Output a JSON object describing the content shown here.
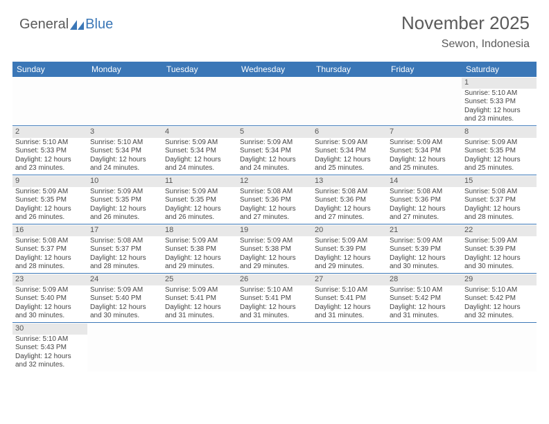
{
  "logo": {
    "part1": "General",
    "part2": "Blue"
  },
  "title": "November 2025",
  "subtitle": "Sewon, Indonesia",
  "colors": {
    "header_bg": "#3b77b7",
    "header_text": "#ffffff",
    "daynum_bg": "#e8e8e8",
    "cell_text": "#454545",
    "title_text": "#5a5a5a",
    "row_border": "#3b77b7"
  },
  "day_names": [
    "Sunday",
    "Monday",
    "Tuesday",
    "Wednesday",
    "Thursday",
    "Friday",
    "Saturday"
  ],
  "weeks": [
    [
      {
        "n": "",
        "empty": true
      },
      {
        "n": "",
        "empty": true
      },
      {
        "n": "",
        "empty": true
      },
      {
        "n": "",
        "empty": true
      },
      {
        "n": "",
        "empty": true
      },
      {
        "n": "",
        "empty": true
      },
      {
        "n": "1",
        "sr": "5:10 AM",
        "ss": "5:33 PM",
        "dl": "12 hours and 23 minutes."
      }
    ],
    [
      {
        "n": "2",
        "sr": "5:10 AM",
        "ss": "5:33 PM",
        "dl": "12 hours and 23 minutes."
      },
      {
        "n": "3",
        "sr": "5:10 AM",
        "ss": "5:34 PM",
        "dl": "12 hours and 24 minutes."
      },
      {
        "n": "4",
        "sr": "5:09 AM",
        "ss": "5:34 PM",
        "dl": "12 hours and 24 minutes."
      },
      {
        "n": "5",
        "sr": "5:09 AM",
        "ss": "5:34 PM",
        "dl": "12 hours and 24 minutes."
      },
      {
        "n": "6",
        "sr": "5:09 AM",
        "ss": "5:34 PM",
        "dl": "12 hours and 25 minutes."
      },
      {
        "n": "7",
        "sr": "5:09 AM",
        "ss": "5:34 PM",
        "dl": "12 hours and 25 minutes."
      },
      {
        "n": "8",
        "sr": "5:09 AM",
        "ss": "5:35 PM",
        "dl": "12 hours and 25 minutes."
      }
    ],
    [
      {
        "n": "9",
        "sr": "5:09 AM",
        "ss": "5:35 PM",
        "dl": "12 hours and 26 minutes."
      },
      {
        "n": "10",
        "sr": "5:09 AM",
        "ss": "5:35 PM",
        "dl": "12 hours and 26 minutes."
      },
      {
        "n": "11",
        "sr": "5:09 AM",
        "ss": "5:35 PM",
        "dl": "12 hours and 26 minutes."
      },
      {
        "n": "12",
        "sr": "5:08 AM",
        "ss": "5:36 PM",
        "dl": "12 hours and 27 minutes."
      },
      {
        "n": "13",
        "sr": "5:08 AM",
        "ss": "5:36 PM",
        "dl": "12 hours and 27 minutes."
      },
      {
        "n": "14",
        "sr": "5:08 AM",
        "ss": "5:36 PM",
        "dl": "12 hours and 27 minutes."
      },
      {
        "n": "15",
        "sr": "5:08 AM",
        "ss": "5:37 PM",
        "dl": "12 hours and 28 minutes."
      }
    ],
    [
      {
        "n": "16",
        "sr": "5:08 AM",
        "ss": "5:37 PM",
        "dl": "12 hours and 28 minutes."
      },
      {
        "n": "17",
        "sr": "5:08 AM",
        "ss": "5:37 PM",
        "dl": "12 hours and 28 minutes."
      },
      {
        "n": "18",
        "sr": "5:09 AM",
        "ss": "5:38 PM",
        "dl": "12 hours and 29 minutes."
      },
      {
        "n": "19",
        "sr": "5:09 AM",
        "ss": "5:38 PM",
        "dl": "12 hours and 29 minutes."
      },
      {
        "n": "20",
        "sr": "5:09 AM",
        "ss": "5:39 PM",
        "dl": "12 hours and 29 minutes."
      },
      {
        "n": "21",
        "sr": "5:09 AM",
        "ss": "5:39 PM",
        "dl": "12 hours and 30 minutes."
      },
      {
        "n": "22",
        "sr": "5:09 AM",
        "ss": "5:39 PM",
        "dl": "12 hours and 30 minutes."
      }
    ],
    [
      {
        "n": "23",
        "sr": "5:09 AM",
        "ss": "5:40 PM",
        "dl": "12 hours and 30 minutes."
      },
      {
        "n": "24",
        "sr": "5:09 AM",
        "ss": "5:40 PM",
        "dl": "12 hours and 30 minutes."
      },
      {
        "n": "25",
        "sr": "5:09 AM",
        "ss": "5:41 PM",
        "dl": "12 hours and 31 minutes."
      },
      {
        "n": "26",
        "sr": "5:10 AM",
        "ss": "5:41 PM",
        "dl": "12 hours and 31 minutes."
      },
      {
        "n": "27",
        "sr": "5:10 AM",
        "ss": "5:41 PM",
        "dl": "12 hours and 31 minutes."
      },
      {
        "n": "28",
        "sr": "5:10 AM",
        "ss": "5:42 PM",
        "dl": "12 hours and 31 minutes."
      },
      {
        "n": "29",
        "sr": "5:10 AM",
        "ss": "5:42 PM",
        "dl": "12 hours and 32 minutes."
      }
    ],
    [
      {
        "n": "30",
        "sr": "5:10 AM",
        "ss": "5:43 PM",
        "dl": "12 hours and 32 minutes."
      },
      {
        "n": "",
        "empty": true
      },
      {
        "n": "",
        "empty": true
      },
      {
        "n": "",
        "empty": true
      },
      {
        "n": "",
        "empty": true
      },
      {
        "n": "",
        "empty": true
      },
      {
        "n": "",
        "empty": true
      }
    ]
  ],
  "labels": {
    "sunrise": "Sunrise: ",
    "sunset": "Sunset: ",
    "daylight": "Daylight: "
  }
}
